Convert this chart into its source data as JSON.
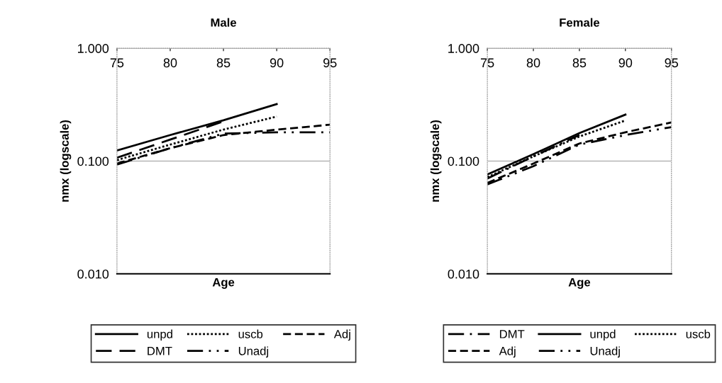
{
  "chart_data": [
    {
      "type": "line",
      "title": "Male",
      "xlabel": "Age",
      "ylabel": "nmx (logscale)",
      "log": "y",
      "grid": "y",
      "legend": "bottom",
      "marker": "none",
      "xlim": [
        75,
        95
      ],
      "xticks": [
        75,
        80,
        85,
        90,
        95
      ],
      "ylim": [
        0.01,
        1
      ],
      "yticks": [
        {
          "value": 0.01,
          "label": "0.010"
        },
        {
          "value": 0.1,
          "label": "0.100"
        },
        {
          "value": 1,
          "label": "1.000"
        }
      ],
      "series": [
        {
          "name": "unpd",
          "color": "#000000",
          "line_style": "solid",
          "x": [
            75,
            80,
            85,
            90
          ],
          "values": [
            0.124,
            0.17,
            0.23,
            0.32
          ]
        },
        {
          "name": "uscb",
          "color": "#000000",
          "line_style": "dotted",
          "x": [
            75,
            80,
            85,
            90
          ],
          "values": [
            0.102,
            0.14,
            0.19,
            0.248
          ]
        },
        {
          "name": "Adj",
          "color": "#000000",
          "line_style": "dashed",
          "x": [
            75,
            80,
            85,
            90,
            95
          ],
          "values": [
            0.095,
            0.13,
            0.17,
            0.19,
            0.21
          ]
        },
        {
          "name": "DMT",
          "color": "#000000",
          "line_style": "longdash",
          "x": [
            75,
            80,
            85
          ],
          "values": [
            0.107,
            0.155,
            0.225
          ]
        },
        {
          "name": "Unadj",
          "color": "#000000",
          "line_style": "dashdotdot",
          "x": [
            75,
            80,
            85,
            90,
            95
          ],
          "values": [
            0.093,
            0.13,
            0.175,
            0.18,
            0.18
          ]
        }
      ]
    },
    {
      "type": "line",
      "title": "Female",
      "xlabel": "Age",
      "ylabel": "nmx (logscale)",
      "log": "y",
      "grid": "y",
      "legend": "bottom",
      "marker": "none",
      "xlim": [
        75,
        95
      ],
      "xticks": [
        75,
        80,
        85,
        90,
        95
      ],
      "ylim": [
        0.01,
        1
      ],
      "yticks": [
        {
          "value": 0.01,
          "label": "0.010"
        },
        {
          "value": 0.1,
          "label": "0.100"
        },
        {
          "value": 1,
          "label": "1.000"
        }
      ],
      "series": [
        {
          "name": "DMT",
          "color": "#000000",
          "line_style": "longdashdot",
          "x": [
            75,
            80,
            85
          ],
          "values": [
            0.07,
            0.11,
            0.17
          ]
        },
        {
          "name": "unpd",
          "color": "#000000",
          "line_style": "solid",
          "x": [
            75,
            80,
            85,
            90
          ],
          "values": [
            0.076,
            0.115,
            0.177,
            0.258
          ]
        },
        {
          "name": "uscb",
          "color": "#000000",
          "line_style": "dotted",
          "x": [
            75,
            80,
            85,
            90
          ],
          "values": [
            0.072,
            0.11,
            0.165,
            0.229
          ]
        },
        {
          "name": "Adj",
          "color": "#000000",
          "line_style": "dashed",
          "x": [
            75,
            80,
            85,
            90,
            95
          ],
          "values": [
            0.064,
            0.095,
            0.143,
            0.18,
            0.22
          ]
        },
        {
          "name": "Unadj",
          "color": "#000000",
          "line_style": "dashdotdot",
          "x": [
            75,
            80,
            85,
            90,
            95
          ],
          "values": [
            0.062,
            0.09,
            0.14,
            0.17,
            0.2
          ]
        }
      ]
    }
  ]
}
